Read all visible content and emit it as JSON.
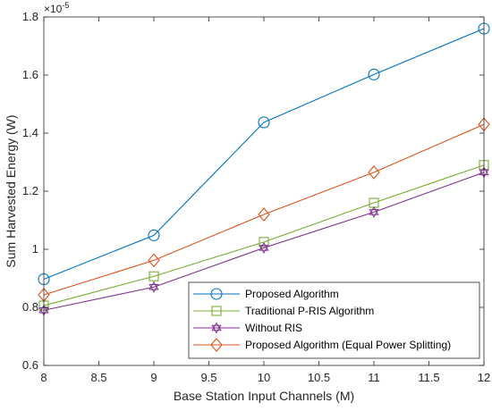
{
  "chart_data": {
    "type": "line",
    "title": "",
    "xlabel": "Base Station Input Channels (M)",
    "ylabel": "Sum Harvested Energy (W)",
    "y_exponent_base": "×10",
    "y_exponent_power": "-5",
    "xlim": [
      8,
      12
    ],
    "ylim": [
      0.6,
      1.8
    ],
    "x_ticks": [
      8,
      8.5,
      9,
      9.5,
      10,
      10.5,
      11,
      11.5,
      12
    ],
    "x_tick_labels": [
      "8",
      "8.5",
      "9",
      "9.5",
      "10",
      "10.5",
      "11",
      "11.5",
      "12"
    ],
    "y_ticks": [
      0.6,
      0.8,
      1.0,
      1.2,
      1.4,
      1.6,
      1.8
    ],
    "y_tick_labels": [
      "0.6",
      "0.8",
      "1",
      "1.2",
      "1.4",
      "1.6",
      "1.8"
    ],
    "grid": false,
    "legend_position": "bottom-right",
    "x": [
      8,
      9,
      10,
      11,
      12
    ],
    "series": [
      {
        "name": "Proposed Algorithm",
        "values": [
          0.897,
          1.048,
          1.437,
          1.602,
          1.76
        ],
        "color": "#0072BD",
        "marker": "circle"
      },
      {
        "name": "Traditional P-RIS Algorithm",
        "values": [
          0.806,
          0.907,
          1.025,
          1.16,
          1.29
        ],
        "color": "#77AC30",
        "marker": "square"
      },
      {
        "name": "Without RIS",
        "values": [
          0.79,
          0.87,
          1.005,
          1.128,
          1.265
        ],
        "color": "#7E2F8E",
        "marker": "hexagram"
      },
      {
        "name": "Proposed Algorithm (Equal Power Splitting)",
        "values": [
          0.843,
          0.962,
          1.12,
          1.265,
          1.43
        ],
        "color": "#D95319",
        "marker": "diamond"
      }
    ]
  }
}
